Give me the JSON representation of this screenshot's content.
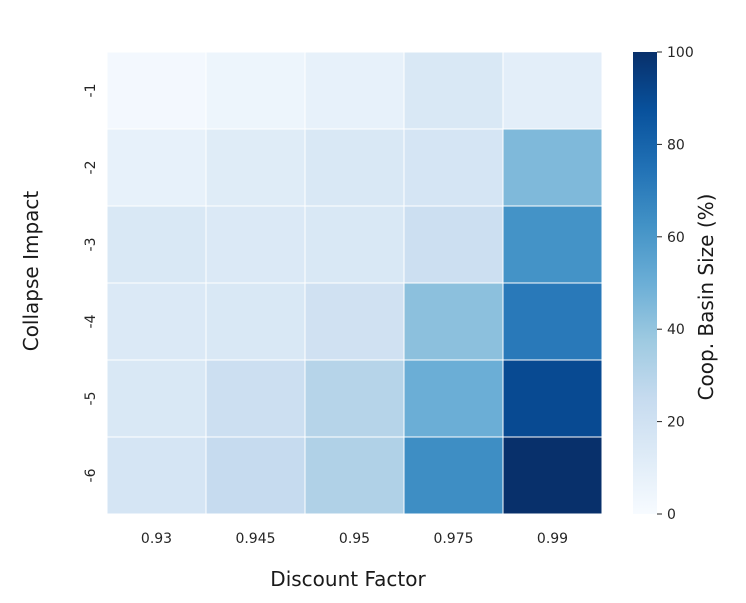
{
  "chart_data": {
    "type": "heatmap",
    "xlabel": "Discount Factor",
    "ylabel": "Collapse Impact",
    "x_categories": [
      "0.93",
      "0.945",
      "0.95",
      "0.975",
      "0.99"
    ],
    "y_categories": [
      "-1",
      "-2",
      "-3",
      "-4",
      "-5",
      "-6"
    ],
    "values": [
      [
        2,
        5,
        8,
        15,
        10
      ],
      [
        8,
        12,
        15,
        17,
        45
      ],
      [
        15,
        14,
        15,
        22,
        62
      ],
      [
        14,
        15,
        20,
        42,
        72
      ],
      [
        15,
        22,
        30,
        50,
        90
      ],
      [
        17,
        25,
        32,
        64,
        100
      ]
    ],
    "colorbar": {
      "label": "Coop. Basin Size (%)",
      "range": [
        0,
        100
      ],
      "ticks": [
        "0",
        "20",
        "40",
        "60",
        "80",
        "100"
      ],
      "colormap": "Blues"
    },
    "grid": false
  }
}
